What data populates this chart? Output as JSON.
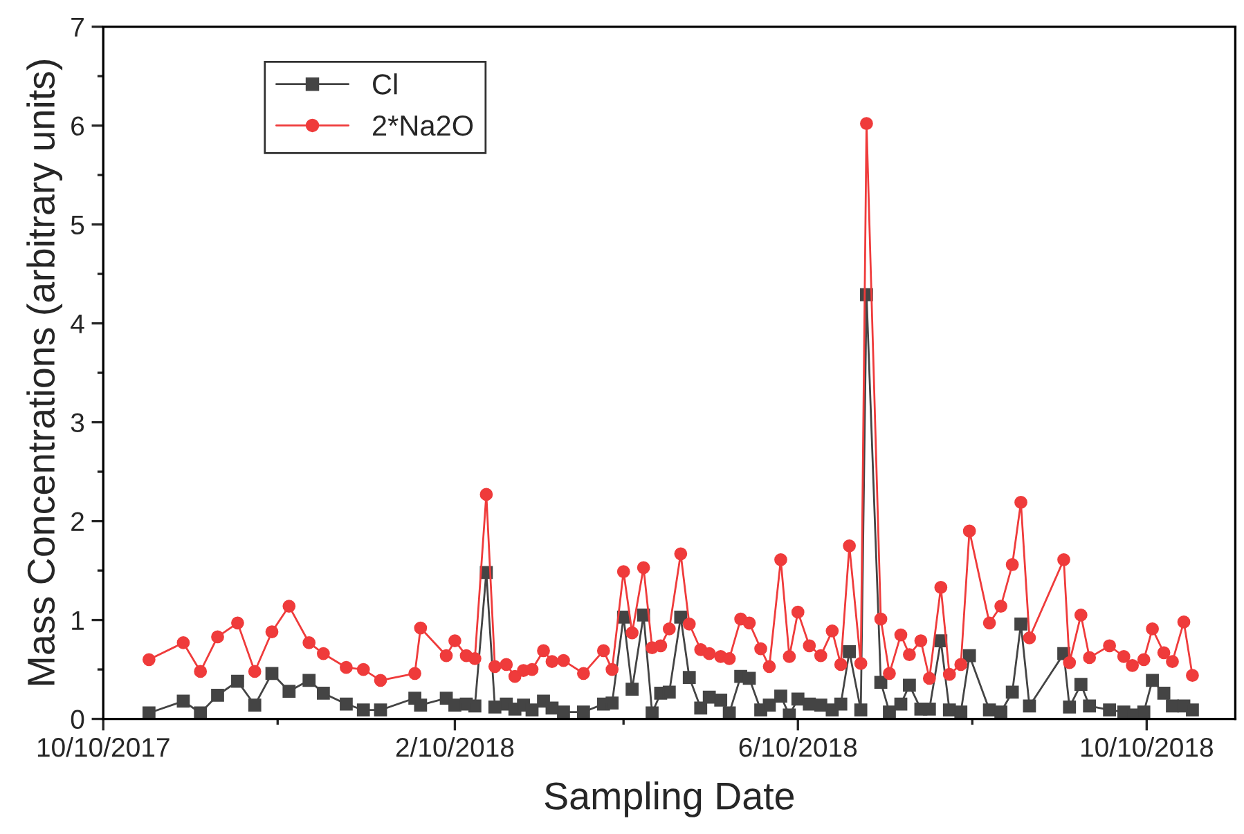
{
  "chart_data": {
    "type": "line",
    "xlabel": "Sampling Date",
    "ylabel": "Mass Concentrations (arbitrary units)",
    "x": [
      "2017-10-26",
      "2017-11-07",
      "2017-11-13",
      "2017-11-19",
      "2017-11-26",
      "2017-12-02",
      "2017-12-08",
      "2017-12-14",
      "2017-12-21",
      "2017-12-26",
      "2018-01-03",
      "2018-01-09",
      "2018-01-15",
      "2018-01-27",
      "2018-01-29",
      "2018-02-07",
      "2018-02-10",
      "2018-02-14",
      "2018-02-17",
      "2018-02-21",
      "2018-02-24",
      "2018-02-28",
      "2018-03-03",
      "2018-03-06",
      "2018-03-09",
      "2018-03-13",
      "2018-03-16",
      "2018-03-20",
      "2018-03-27",
      "2018-04-03",
      "2018-04-06",
      "2018-04-10",
      "2018-04-13",
      "2018-04-17",
      "2018-04-20",
      "2018-04-23",
      "2018-04-26",
      "2018-04-30",
      "2018-05-03",
      "2018-05-07",
      "2018-05-10",
      "2018-05-14",
      "2018-05-17",
      "2018-05-21",
      "2018-05-24",
      "2018-05-28",
      "2018-05-31",
      "2018-06-04",
      "2018-06-07",
      "2018-06-10",
      "2018-06-14",
      "2018-06-18",
      "2018-06-22",
      "2018-06-25",
      "2018-06-28",
      "2018-07-02",
      "2018-07-04",
      "2018-07-09",
      "2018-07-12",
      "2018-07-16",
      "2018-07-19",
      "2018-07-23",
      "2018-07-26",
      "2018-07-30",
      "2018-08-02",
      "2018-08-06",
      "2018-08-09",
      "2018-08-16",
      "2018-08-20",
      "2018-08-24",
      "2018-08-27",
      "2018-08-30",
      "2018-09-11",
      "2018-09-13",
      "2018-09-17",
      "2018-09-20",
      "2018-09-27",
      "2018-10-02",
      "2018-10-05",
      "2018-10-09",
      "2018-10-12",
      "2018-10-16",
      "2018-10-19",
      "2018-10-23",
      "2018-10-26"
    ],
    "series": [
      {
        "name": "Cl",
        "color": "#444444",
        "marker": "square",
        "values": [
          0.06,
          0.18,
          0.06,
          0.24,
          0.38,
          0.14,
          0.46,
          0.28,
          0.39,
          0.26,
          0.15,
          0.09,
          0.09,
          0.21,
          0.14,
          0.21,
          0.14,
          0.15,
          0.13,
          1.48,
          0.12,
          0.15,
          0.1,
          0.14,
          0.09,
          0.18,
          0.11,
          0.07,
          0.07,
          0.15,
          0.16,
          1.03,
          0.3,
          1.05,
          0.06,
          0.26,
          0.27,
          1.03,
          0.42,
          0.11,
          0.22,
          0.19,
          0.06,
          0.43,
          0.41,
          0.09,
          0.14,
          0.23,
          0.04,
          0.2,
          0.15,
          0.14,
          0.09,
          0.15,
          0.68,
          0.09,
          4.29,
          0.37,
          0.07,
          0.15,
          0.34,
          0.1,
          0.1,
          0.79,
          0.09,
          0.07,
          0.64,
          0.09,
          0.07,
          0.27,
          0.96,
          0.13,
          0.66,
          0.12,
          0.35,
          0.13,
          0.09,
          0.07,
          0.04,
          0.07,
          0.39,
          0.26,
          0.13,
          0.13,
          0.09
        ]
      },
      {
        "name": "2*Na2O",
        "color": "#ef3b3b",
        "marker": "circle",
        "values": [
          0.6,
          0.77,
          0.48,
          0.83,
          0.97,
          0.48,
          0.88,
          1.14,
          0.77,
          0.66,
          0.52,
          0.5,
          0.39,
          0.46,
          0.92,
          0.64,
          0.79,
          0.64,
          0.61,
          2.27,
          0.53,
          0.55,
          0.43,
          0.49,
          0.5,
          0.69,
          0.58,
          0.59,
          0.46,
          0.69,
          0.5,
          1.49,
          0.87,
          1.53,
          0.72,
          0.74,
          0.91,
          1.67,
          0.96,
          0.7,
          0.66,
          0.63,
          0.61,
          1.01,
          0.97,
          0.71,
          0.53,
          1.61,
          0.63,
          1.08,
          0.74,
          0.64,
          0.89,
          0.55,
          1.75,
          0.56,
          6.02,
          1.01,
          0.46,
          0.85,
          0.65,
          0.79,
          0.41,
          1.33,
          0.45,
          0.55,
          1.9,
          0.97,
          1.14,
          1.56,
          2.19,
          0.82,
          1.61,
          0.57,
          1.05,
          0.62,
          0.74,
          0.63,
          0.54,
          0.6,
          0.91,
          0.67,
          0.58,
          0.98,
          0.44
        ]
      }
    ],
    "xlim": [
      "2017-10-10",
      "2018-11-10"
    ],
    "xticks": [
      {
        "value": "2017-10-10",
        "label": "10/10/2017"
      },
      {
        "value": "2017-12-10",
        "label": null
      },
      {
        "value": "2018-02-10",
        "label": "2/10/2018"
      },
      {
        "value": "2018-04-10",
        "label": null
      },
      {
        "value": "2018-06-10",
        "label": "6/10/2018"
      },
      {
        "value": "2018-08-10",
        "label": null
      },
      {
        "value": "2018-10-10",
        "label": "10/10/2018"
      }
    ],
    "ylim": [
      0,
      7
    ],
    "yticks": [
      0,
      {
        "value": 0.5,
        "label": null
      },
      1,
      {
        "value": 1.5,
        "label": null
      },
      2,
      {
        "value": 2.5,
        "label": null
      },
      3,
      {
        "value": 3.5,
        "label": null
      },
      4,
      {
        "value": 4.5,
        "label": null
      },
      5,
      {
        "value": 5.5,
        "label": null
      },
      6,
      {
        "value": 6.5,
        "label": null
      },
      7
    ],
    "grid": false,
    "legend": "top left",
    "line_style": "solid"
  }
}
